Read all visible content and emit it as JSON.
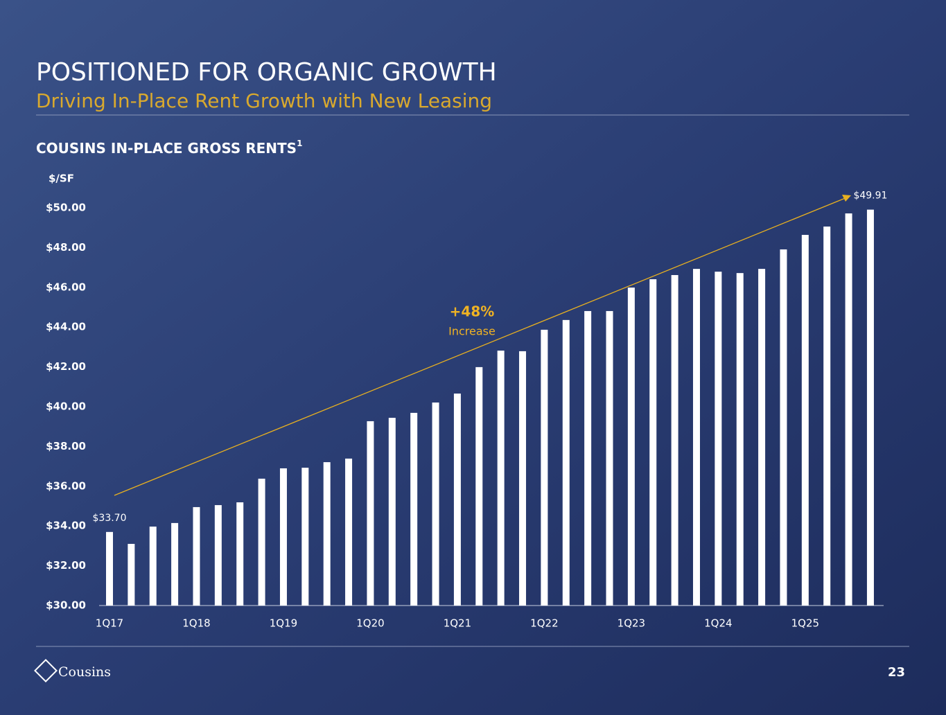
{
  "header": {
    "title": "POSITIONED FOR ORGANIC GROWTH",
    "subtitle": "Driving In-Place Rent Growth with New Leasing"
  },
  "chart_data": {
    "type": "bar",
    "title": "COUSINS IN-PLACE GROSS RENTS",
    "title_footnote": "1",
    "y_label": "$/SF",
    "color": "#ffffff",
    "categories": [
      "1Q17",
      null,
      null,
      null,
      "1Q18",
      null,
      null,
      null,
      "1Q19",
      null,
      null,
      null,
      "1Q20",
      null,
      null,
      null,
      "1Q21",
      null,
      null,
      null,
      "1Q22",
      null,
      null,
      null,
      "1Q23",
      null,
      null,
      null,
      "1Q24",
      null,
      null,
      null,
      "1Q25",
      null,
      null,
      null
    ],
    "values": [
      33.7,
      33.1,
      33.97,
      34.15,
      34.95,
      35.05,
      35.19,
      36.38,
      36.9,
      36.93,
      37.21,
      37.39,
      39.27,
      39.44,
      39.69,
      40.21,
      40.66,
      41.99,
      42.82,
      42.79,
      43.87,
      44.36,
      44.81,
      44.81,
      45.99,
      46.41,
      46.62,
      46.93,
      46.79,
      46.72,
      46.93,
      47.91,
      48.64,
      49.06,
      49.72,
      49.91
    ],
    "value_labels": [
      "$33.70",
      null,
      null,
      null,
      null,
      null,
      null,
      null,
      null,
      null,
      null,
      null,
      null,
      null,
      null,
      null,
      null,
      null,
      null,
      null,
      null,
      null,
      null,
      null,
      null,
      null,
      null,
      null,
      null,
      null,
      null,
      null,
      null,
      null,
      null,
      "$49.91"
    ],
    "ylim": [
      30,
      50.6
    ],
    "yticks": [
      {
        "value": 30,
        "label": "$30.00"
      },
      {
        "value": 32,
        "label": "$32.00"
      },
      {
        "value": 34,
        "label": "$34.00"
      },
      {
        "value": 36,
        "label": "$36.00"
      },
      {
        "value": 38,
        "label": "$38.00"
      },
      {
        "value": 40,
        "label": "$40.00"
      },
      {
        "value": 42,
        "label": "$42.00"
      },
      {
        "value": 44,
        "label": "$44.00"
      },
      {
        "value": 46,
        "label": "$46.00"
      },
      {
        "value": 48,
        "label": "$48.00"
      },
      {
        "value": 50,
        "label": "$50.00"
      }
    ],
    "annotations": [
      "+48%",
      "Increase"
    ]
  },
  "footer": {
    "logo": "Cousins",
    "page": "23"
  }
}
